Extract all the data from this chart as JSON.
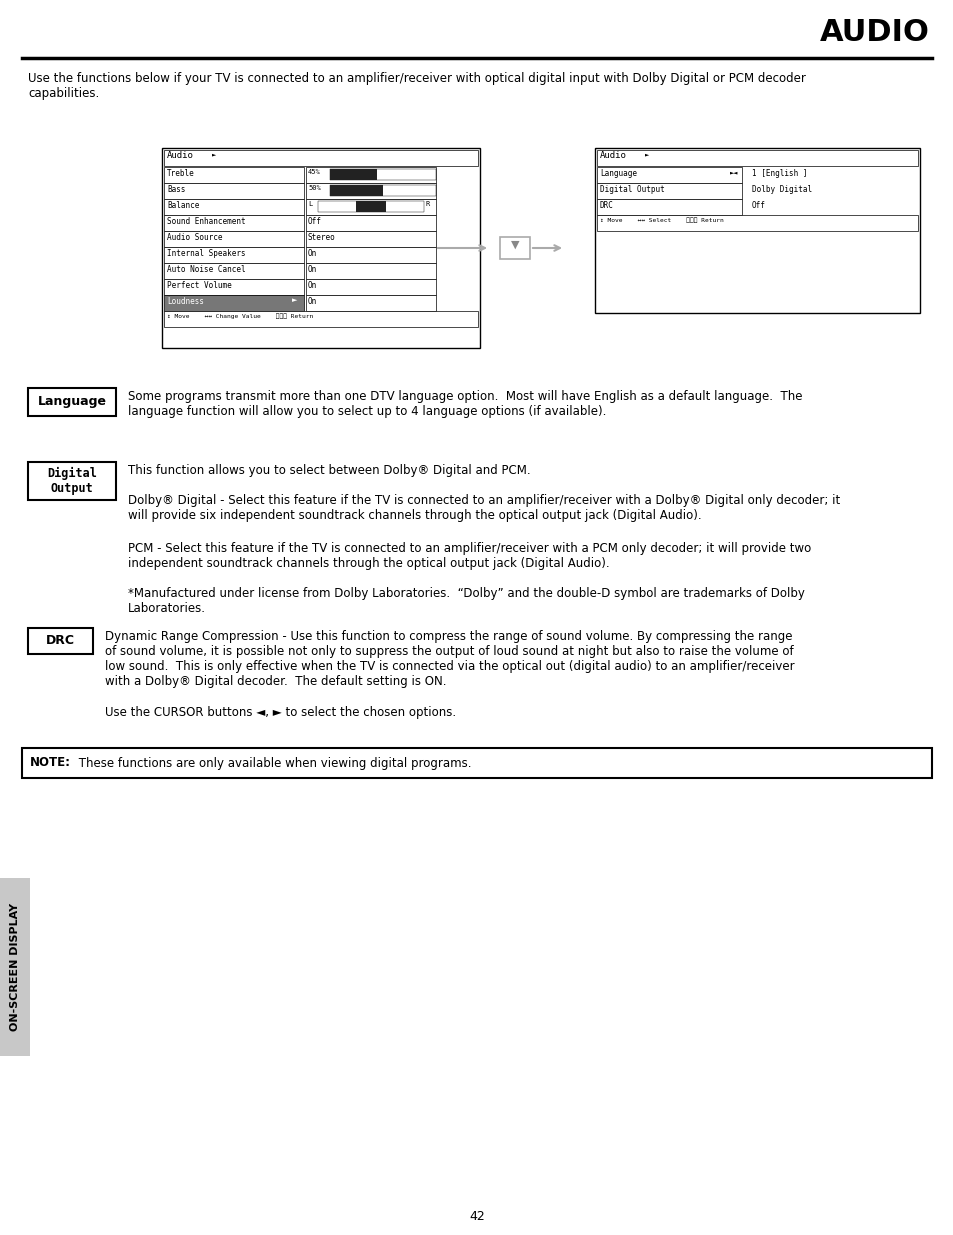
{
  "title": "AUDIO",
  "page_number": "42",
  "bg_color": "#ffffff",
  "sidebar_color": "#c8c8c8",
  "sidebar_text": "ON-SCREEN DISPLAY",
  "intro_text": "Use the functions below if your TV is connected to an amplifier/receiver with optical digital input with Dolby Digital or PCM decoder\ncapabilities.",
  "language_label": "Language",
  "language_desc": "Some programs transmit more than one DTV language option.  Most will have English as a default language.  The\nlanguage function will allow you to select up to 4 language options (if available).",
  "digital_label": "Digital\nOutput",
  "digital_desc": "This function allows you to select between Dolby® Digital and PCM.",
  "digital_desc2": "Dolby® Digital - Select this feature if the TV is connected to an amplifier/receiver with a Dolby® Digital only decoder; it\nwill provide six independent soundtrack channels through the optical output jack (Digital Audio).",
  "digital_desc3": "PCM - Select this feature if the TV is connected to an amplifier/receiver with a PCM only decoder; it will provide two\nindependent soundtrack channels through the optical output jack (Digital Audio).",
  "digital_desc4": "*Manufactured under license from Dolby Laboratories.  “Dolby” and the double-D symbol are trademarks of Dolby\nLaboratories.",
  "drc_label": "DRC",
  "drc_desc": "Dynamic Range Compression - Use this function to compress the range of sound volume. By compressing the range\nof sound volume, it is possible not only to suppress the output of loud sound at night but also to raise the volume of\nlow sound.  This is only effective when the TV is connected via the optical out (digital audio) to an amplifier/receiver\nwith a Dolby® Digital decoder.  The default setting is ON.",
  "drc_desc2": "Use the CURSOR buttons ◄, ► to select the chosen options.",
  "note_bold": "NOTE:",
  "note_text": " These functions are only available when viewing digital programs.",
  "left_menu_items": [
    "Treble",
    "Bass",
    "Balance",
    "Sound Enhancement",
    "Audio Source",
    "Internal Speakers",
    "Auto Noise Cancel",
    "Perfect Volume",
    "Loudness"
  ],
  "left_menu_values": [
    "45%",
    "50%",
    "",
    "Off",
    "Stereo",
    "On",
    "On",
    "On",
    "On"
  ],
  "right_menu_items": [
    "Language",
    "Digital Output",
    "DRC"
  ],
  "right_menu_values": [
    "1 [English ]",
    "Dolby Digital",
    "Off"
  ]
}
